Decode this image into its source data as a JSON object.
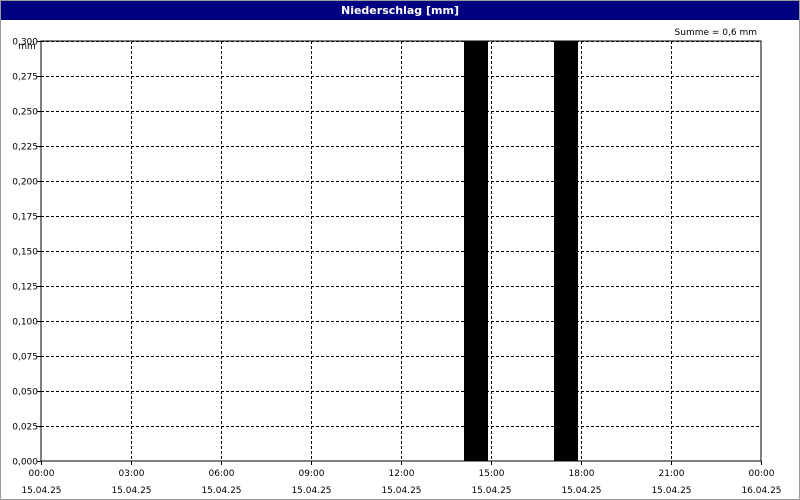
{
  "window": {
    "title": "Niederschlag [mm]"
  },
  "chart_data": {
    "type": "bar",
    "title": "Niederschlag [mm]",
    "ylabel": "mm",
    "annotation": "Summe = 0,6 mm",
    "ylim": [
      0,
      0.3
    ],
    "yticks": [
      "0,000",
      "0,025",
      "0,050",
      "0,075",
      "0,100",
      "0,125",
      "0,150",
      "0,175",
      "0,200",
      "0,225",
      "0,250",
      "0,275",
      "0,300"
    ],
    "xlim_hours": [
      0,
      24
    ],
    "xticks": [
      {
        "time": "00:00",
        "date": "15.04.25"
      },
      {
        "time": "03:00",
        "date": "15.04.25"
      },
      {
        "time": "06:00",
        "date": "15.04.25"
      },
      {
        "time": "09:00",
        "date": "15.04.25"
      },
      {
        "time": "12:00",
        "date": "15.04.25"
      },
      {
        "time": "15:00",
        "date": "15.04.25"
      },
      {
        "time": "18:00",
        "date": "15.04.25"
      },
      {
        "time": "21:00",
        "date": "15.04.25"
      },
      {
        "time": "00:00",
        "date": "16.04.25"
      }
    ],
    "bars": [
      {
        "x": "15.04.25 14:00",
        "x_hour": 14,
        "width_hours": 1,
        "value": 0.3
      },
      {
        "x": "15.04.25 17:00",
        "x_hour": 17,
        "width_hours": 1,
        "value": 0.3
      }
    ],
    "bar_color": "#000000",
    "grid": true
  }
}
